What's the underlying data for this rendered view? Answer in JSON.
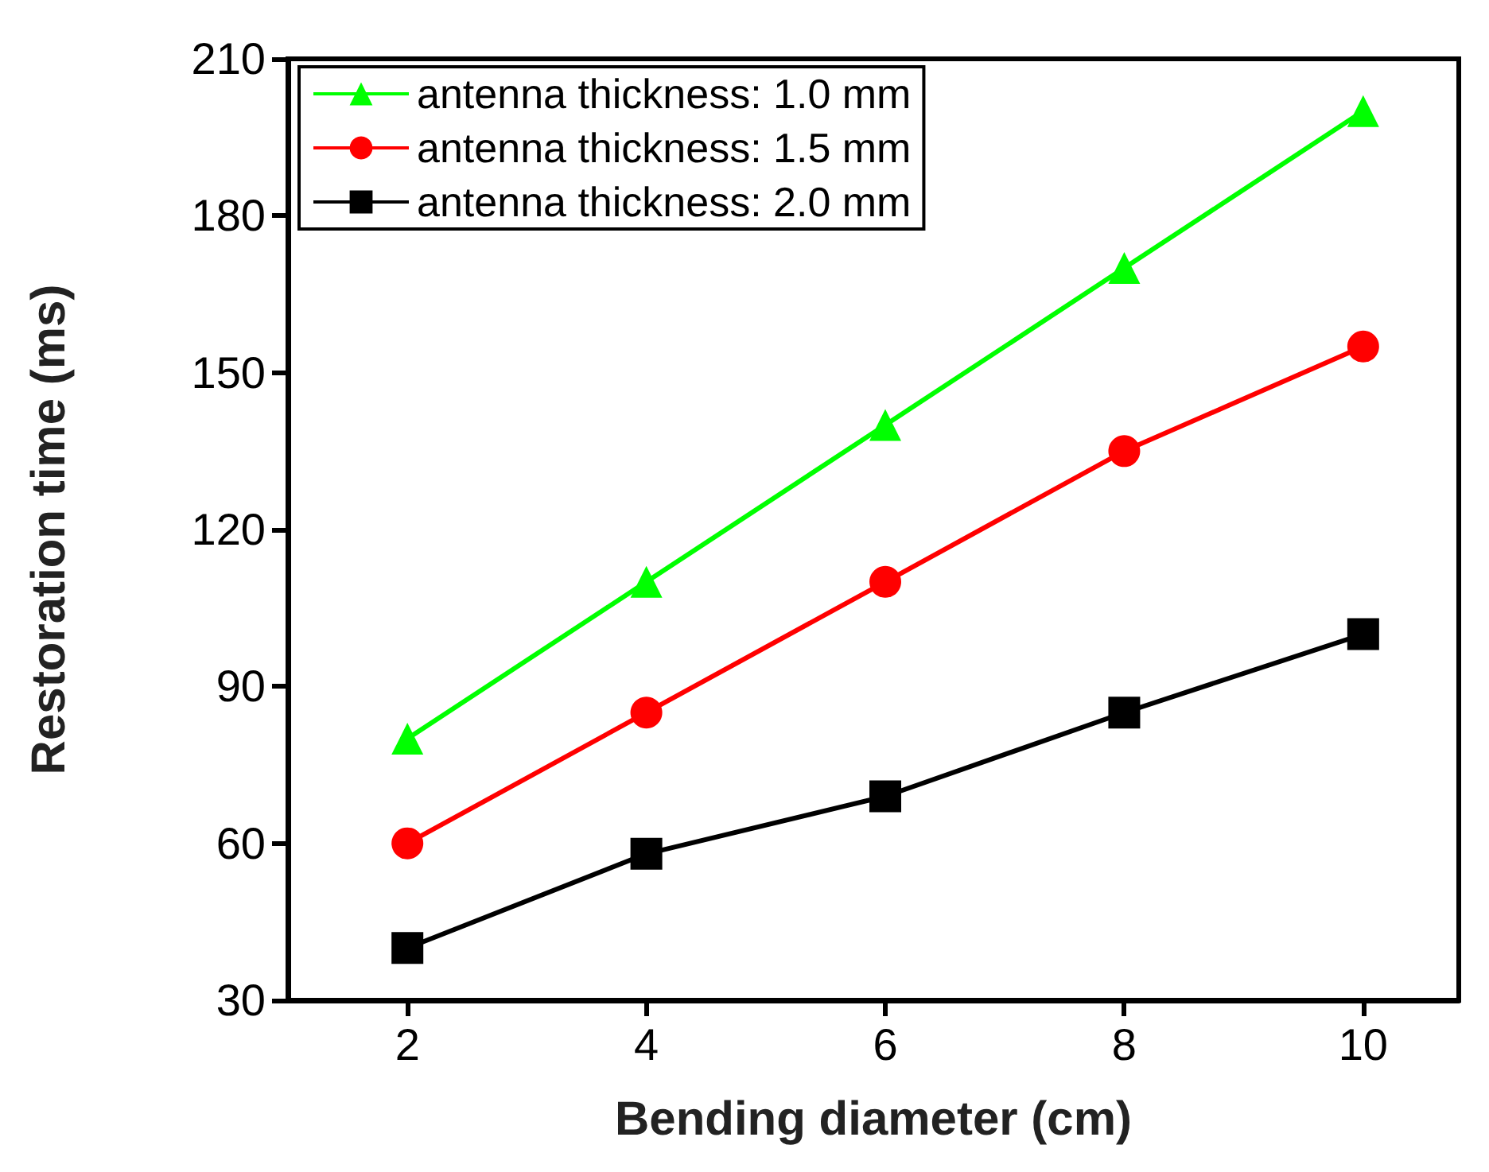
{
  "chart_data": {
    "type": "line",
    "xlabel": "Bending diameter (cm)",
    "ylabel": "Restoration time (ms)",
    "x": [
      2,
      4,
      6,
      8,
      10
    ],
    "series": [
      {
        "name": "antenna thickness: 1.0 mm",
        "color": "#00ff00",
        "marker": "triangle",
        "values": [
          80,
          110,
          140,
          170,
          200
        ]
      },
      {
        "name": "antenna thickness: 1.5 mm",
        "color": "#ff0000",
        "marker": "circle",
        "values": [
          60,
          85,
          110,
          135,
          155
        ]
      },
      {
        "name": "antenna thickness: 2.0 mm",
        "color": "#000000",
        "marker": "square",
        "values": [
          40,
          58,
          69,
          85,
          100
        ]
      }
    ],
    "xlim": [
      1,
      10.8
    ],
    "xticks": [
      2,
      4,
      6,
      8,
      10
    ],
    "ylim": [
      30,
      210
    ],
    "yticks": [
      30,
      60,
      90,
      120,
      150,
      180,
      210
    ],
    "grid": false,
    "legend": "top left",
    "line_style": "solid"
  }
}
